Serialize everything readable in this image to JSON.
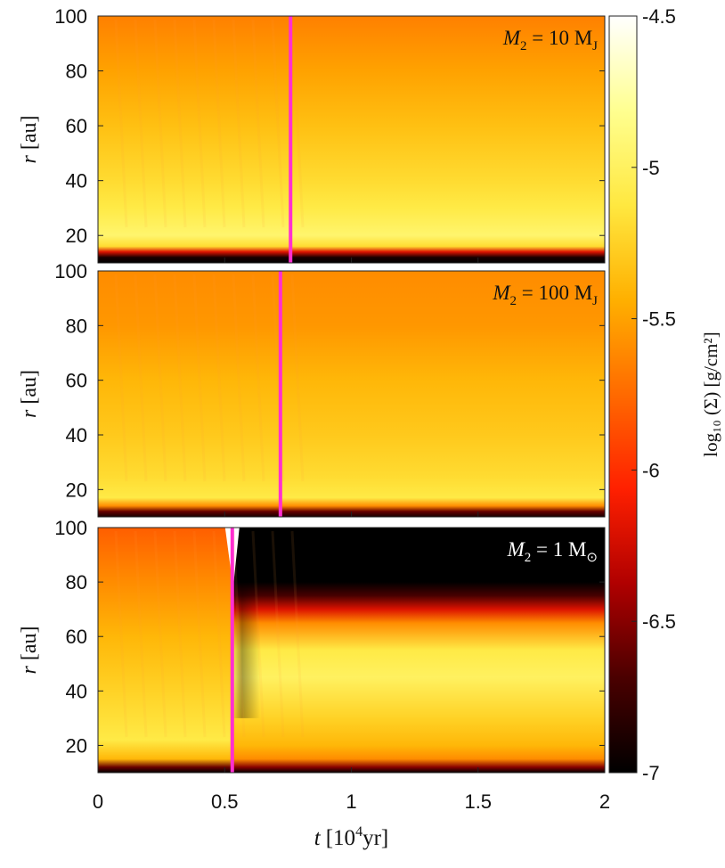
{
  "chart_data": {
    "type": "heatmap",
    "shared_x": {
      "label_t": "t",
      "label_unit": "[10",
      "label_exp": "4",
      "label_unit_end": "yr]",
      "range": [
        0,
        2
      ],
      "ticks": [
        0,
        0.5,
        1,
        1.5,
        2
      ],
      "tick_labels": [
        "0",
        "0.5",
        "1",
        "1.5",
        "2"
      ]
    },
    "colorbar": {
      "label": "log₁₀ (Σ) [g/cm²]",
      "range": [
        -7,
        -4.5
      ],
      "ticks": [
        -4.5,
        -5,
        -5.5,
        -6,
        -6.5,
        -7
      ],
      "tick_labels": [
        "-4.5",
        "-5",
        "-5.5",
        "-6",
        "-6.5",
        "-7"
      ],
      "colormap": [
        "#000000",
        "#4a0000",
        "#b00000",
        "#ff2000",
        "#ff6a00",
        "#ffb000",
        "#ffe840",
        "#ffff90",
        "#ffffff"
      ]
    },
    "panels": [
      {
        "annotation_lhs": "M",
        "annotation_sub": "2",
        "annotation_rhs": " = 10 M",
        "annotation_rsub": "J",
        "annotation_color": "#111111",
        "ylabel_r": "r",
        "ylabel_unit": "[au]",
        "y_range": [
          10,
          100
        ],
        "y_ticks": [
          20,
          40,
          60,
          80,
          100
        ],
        "y_tick_labels": [
          "20",
          "40",
          "60",
          "80",
          "100"
        ],
        "marker_t": 0.76,
        "profile": [
          {
            "r": 10,
            "v": -7.0
          },
          {
            "r": 12,
            "v": -6.9
          },
          {
            "r": 14,
            "v": -6.2
          },
          {
            "r": 16,
            "v": -5.2
          },
          {
            "r": 20,
            "v": -4.95
          },
          {
            "r": 30,
            "v": -5.1
          },
          {
            "r": 40,
            "v": -5.2
          },
          {
            "r": 60,
            "v": -5.35
          },
          {
            "r": 80,
            "v": -5.5
          },
          {
            "r": 100,
            "v": -5.65
          }
        ]
      },
      {
        "annotation_lhs": "M",
        "annotation_sub": "2",
        "annotation_rhs": " = 100 M",
        "annotation_rsub": "J",
        "annotation_color": "#111111",
        "ylabel_r": "r",
        "ylabel_unit": "[au]",
        "y_range": [
          10,
          100
        ],
        "y_ticks": [
          20,
          40,
          60,
          80,
          100
        ],
        "y_tick_labels": [
          "20",
          "40",
          "60",
          "80",
          "100"
        ],
        "marker_t": 0.72,
        "profile": [
          {
            "r": 10,
            "v": -6.9
          },
          {
            "r": 12,
            "v": -6.6
          },
          {
            "r": 14,
            "v": -5.6
          },
          {
            "r": 17,
            "v": -5.1
          },
          {
            "r": 25,
            "v": -5.2
          },
          {
            "r": 40,
            "v": -5.3
          },
          {
            "r": 60,
            "v": -5.4
          },
          {
            "r": 80,
            "v": -5.55
          },
          {
            "r": 100,
            "v": -5.6
          }
        ]
      },
      {
        "annotation_lhs": "M",
        "annotation_sub": "2",
        "annotation_rhs": " = 1 M",
        "annotation_rsub": "⊙",
        "annotation_color": "#ffffff",
        "ylabel_r": "r",
        "ylabel_unit": "[au]",
        "y_range": [
          10,
          100
        ],
        "y_ticks": [
          20,
          40,
          60,
          80,
          100
        ],
        "y_tick_labels": [
          "20",
          "40",
          "60",
          "80",
          "100"
        ],
        "marker_t": 0.53,
        "profile_before": [
          {
            "r": 10,
            "v": -7.0
          },
          {
            "r": 12,
            "v": -6.6
          },
          {
            "r": 15,
            "v": -5.4
          },
          {
            "r": 22,
            "v": -5.1
          },
          {
            "r": 40,
            "v": -5.25
          },
          {
            "r": 60,
            "v": -5.4
          },
          {
            "r": 80,
            "v": -5.6
          },
          {
            "r": 100,
            "v": -5.8
          }
        ],
        "profile_after": [
          {
            "r": 10,
            "v": -7.0
          },
          {
            "r": 12,
            "v": -6.5
          },
          {
            "r": 15,
            "v": -5.6
          },
          {
            "r": 20,
            "v": -5.4
          },
          {
            "r": 30,
            "v": -5.25
          },
          {
            "r": 45,
            "v": -5.0
          },
          {
            "r": 55,
            "v": -5.1
          },
          {
            "r": 65,
            "v": -5.6
          },
          {
            "r": 70,
            "v": -6.2
          },
          {
            "r": 75,
            "v": -6.7
          },
          {
            "r": 80,
            "v": -7.0
          },
          {
            "r": 100,
            "v": -7.0
          }
        ],
        "transition_t": [
          0.53,
          0.64
        ]
      }
    ]
  }
}
